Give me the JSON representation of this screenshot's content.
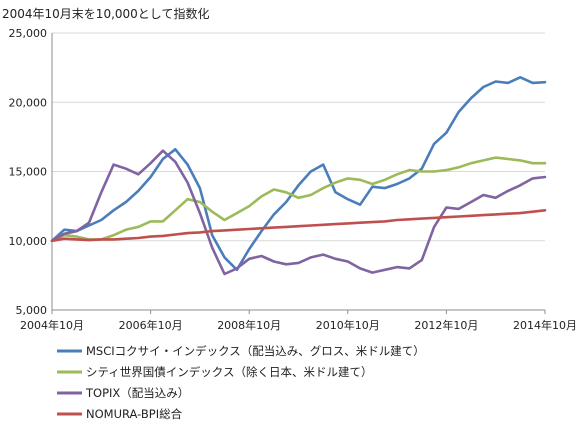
{
  "chart_data": {
    "type": "line",
    "title": "2004年10月末を10,000として指数化",
    "xlabel": "",
    "ylabel": "",
    "ylim": [
      5000,
      25000
    ],
    "y_ticks": [
      5000,
      10000,
      15000,
      20000,
      25000
    ],
    "y_tick_labels": [
      "5,000",
      "10,000",
      "15,000",
      "20,000",
      "25,000"
    ],
    "x_range": [
      0,
      120
    ],
    "x_ticks": [
      0,
      24,
      48,
      72,
      96,
      120
    ],
    "x_tick_labels": [
      "2004年10月",
      "2006年10月",
      "2008年10月",
      "2010年10月",
      "2012年10月",
      "2014年10月"
    ],
    "x_step_months": 3,
    "grid": "horizontal",
    "legend_position": "bottom",
    "series": [
      {
        "name": "MSCIコクサイ・インデックス（配当込み、グロス、米ドル建て）",
        "color": "#4a7ebb",
        "values": [
          10000,
          10800,
          10700,
          11100,
          11500,
          12200,
          12800,
          13600,
          14600,
          15900,
          16600,
          15500,
          13800,
          10400,
          8800,
          7900,
          9400,
          10700,
          11900,
          12800,
          14000,
          15000,
          15500,
          13500,
          13000,
          12600,
          13900,
          13800,
          14100,
          14500,
          15200,
          17000,
          17800,
          19300,
          20300,
          21100,
          21500,
          21400,
          21800,
          21400,
          21450
        ]
      },
      {
        "name": "シティ世界国債インデックス（除く日本、米ドル建て）",
        "color": "#9bbb59",
        "values": [
          10000,
          10400,
          10300,
          10100,
          10100,
          10400,
          10800,
          11000,
          11400,
          11400,
          12200,
          13000,
          12800,
          12100,
          11500,
          12000,
          12500,
          13200,
          13700,
          13500,
          13100,
          13300,
          13800,
          14200,
          14500,
          14400,
          14100,
          14400,
          14800,
          15100,
          15000,
          15000,
          15100,
          15300,
          15600,
          15800,
          16000,
          15900,
          15800,
          15600,
          15600
        ]
      },
      {
        "name": "TOPIX（配当込み）",
        "color": "#8064a2",
        "values": [
          10000,
          10500,
          10700,
          11300,
          13500,
          15500,
          15200,
          14800,
          15600,
          16500,
          15700,
          14200,
          12000,
          9500,
          7600,
          8000,
          8700,
          8900,
          8500,
          8300,
          8400,
          8800,
          9000,
          8700,
          8500,
          8000,
          7700,
          7900,
          8100,
          8000,
          8600,
          11000,
          12400,
          12300,
          12800,
          13300,
          13100,
          13600,
          14000,
          14500,
          14600
        ]
      },
      {
        "name": "NOMURA-BPI総合",
        "color": "#c0504d",
        "values": [
          10000,
          10150,
          10100,
          10050,
          10100,
          10100,
          10150,
          10200,
          10300,
          10350,
          10450,
          10550,
          10600,
          10700,
          10750,
          10800,
          10850,
          10900,
          10950,
          11000,
          11050,
          11100,
          11150,
          11200,
          11250,
          11300,
          11350,
          11400,
          11500,
          11550,
          11600,
          11650,
          11700,
          11750,
          11800,
          11850,
          11900,
          11950,
          12000,
          12100,
          12200
        ]
      }
    ]
  }
}
